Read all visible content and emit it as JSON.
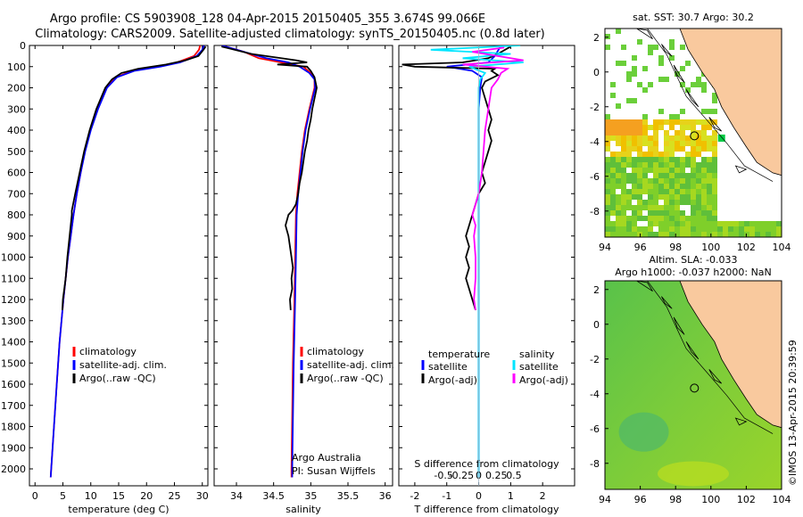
{
  "header": {
    "line1": "Argo profile: CS 5903908_128 04-Apr-2015 20150405_355 3.674S 99.066E",
    "line2": "Climatology: CARS2009. Satellite-adjusted climatology: synTS_20150405.nc (0.8d later)"
  },
  "colors": {
    "clim": "#ff0000",
    "sat": "#0000ff",
    "argo": "#000000",
    "sat_cyan": "#00e5ff",
    "argo_mag": "#ff00ff",
    "land": "#f9c99e"
  },
  "chart_data": [
    {
      "type": "line",
      "name": "temperature-profile",
      "xlabel": "temperature (deg C)",
      "ylabel": "",
      "xlim": [
        -1,
        31
      ],
      "ylim": [
        2080,
        0
      ],
      "xticks": [
        0,
        5,
        10,
        15,
        20,
        25,
        30
      ],
      "yticks": [
        0,
        100,
        200,
        300,
        400,
        500,
        600,
        700,
        800,
        900,
        1000,
        1100,
        1200,
        1300,
        1400,
        1500,
        1600,
        1700,
        1800,
        1900,
        2000
      ],
      "legend": [
        "climatology",
        "satellite-adj. clim.",
        "Argo(..raw -QC)"
      ],
      "series": [
        {
          "name": "climatology",
          "color": "#ff0000",
          "depth": [
            0,
            20,
            50,
            80,
            100,
            120,
            150,
            200,
            300,
            400,
            500,
            600,
            700,
            800,
            900,
            1000,
            1200,
            1400,
            1600,
            1800,
            2000,
            2040
          ],
          "values": [
            29.6,
            29.4,
            28.5,
            25.5,
            22,
            17.5,
            14.5,
            12.8,
            11.2,
            9.9,
            8.9,
            8.2,
            7.5,
            6.9,
            6.4,
            5.9,
            5.1,
            4.4,
            3.9,
            3.4,
            2.9,
            2.8
          ]
        },
        {
          "name": "satellite-adj. clim.",
          "color": "#0000ff",
          "depth": [
            0,
            20,
            50,
            80,
            100,
            120,
            150,
            200,
            300,
            400,
            500,
            600,
            700,
            800,
            900,
            1000,
            1200,
            1400,
            1600,
            1800,
            2000,
            2040
          ],
          "values": [
            30.3,
            30.0,
            29.0,
            26,
            22.5,
            17.8,
            14.7,
            12.9,
            11.3,
            10.0,
            9.0,
            8.2,
            7.5,
            6.9,
            6.4,
            5.9,
            5.1,
            4.4,
            3.9,
            3.4,
            2.9,
            2.8
          ]
        },
        {
          "name": "Argo(..raw -QC)",
          "color": "#000000",
          "depth": [
            5,
            20,
            50,
            70,
            90,
            110,
            130,
            160,
            200,
            300,
            400,
            500,
            600,
            700,
            780,
            800,
            900,
            1000,
            1100,
            1200,
            1250
          ],
          "values": [
            30.6,
            30.2,
            29.3,
            27,
            23.5,
            18.5,
            15.5,
            13.8,
            12.6,
            11.0,
            9.8,
            8.8,
            8.0,
            7.2,
            6.6,
            6.6,
            6.2,
            5.8,
            5.5,
            5.0,
            4.9
          ]
        }
      ]
    },
    {
      "type": "line",
      "name": "salinity-profile",
      "xlabel": "salinity",
      "ylabel": "",
      "xlim": [
        33.7,
        36.1
      ],
      "ylim": [
        2080,
        0
      ],
      "xticks": [
        34,
        34.5,
        35,
        35.5,
        36
      ],
      "legend": [
        "climatology",
        "satellite-adj. clim.",
        "Argo(..raw -QC)"
      ],
      "annotation": [
        "Argo Australia",
        "PI: Susan Wijffels"
      ],
      "series": [
        {
          "name": "climatology",
          "color": "#ff0000",
          "depth": [
            0,
            30,
            60,
            80,
            100,
            130,
            160,
            200,
            300,
            400,
            500,
            600,
            700,
            800,
            1000,
            1200,
            1500,
            2000,
            2040
          ],
          "values": [
            33.8,
            34.1,
            34.3,
            34.6,
            34.9,
            35.0,
            35.05,
            35.05,
            34.98,
            34.92,
            34.88,
            34.85,
            34.82,
            34.8,
            34.79,
            34.78,
            34.76,
            34.74,
            34.74
          ]
        },
        {
          "name": "satellite-adj. clim.",
          "color": "#0000ff",
          "depth": [
            0,
            30,
            60,
            80,
            100,
            130,
            160,
            200,
            300,
            400,
            500,
            600,
            700,
            800,
            1000,
            1200,
            1500,
            2000,
            2040
          ],
          "values": [
            33.8,
            34.1,
            34.4,
            34.7,
            34.85,
            34.98,
            35.05,
            35.06,
            34.99,
            34.93,
            34.89,
            34.86,
            34.83,
            34.81,
            34.8,
            34.79,
            34.77,
            34.75,
            34.75
          ]
        },
        {
          "name": "Argo(..raw -QC)",
          "color": "#000000",
          "depth": [
            5,
            40,
            70,
            80,
            90,
            100,
            120,
            150,
            200,
            250,
            300,
            350,
            400,
            450,
            500,
            550,
            600,
            650,
            700,
            750,
            780,
            800,
            850,
            900,
            950,
            1000,
            1050,
            1100,
            1150,
            1200,
            1250
          ],
          "values": [
            33.8,
            34.2,
            34.8,
            34.95,
            34.55,
            34.95,
            35.0,
            35.05,
            35.08,
            35.05,
            35.02,
            35.0,
            34.97,
            34.95,
            34.92,
            34.9,
            34.88,
            34.85,
            34.83,
            34.8,
            34.75,
            34.7,
            34.66,
            34.7,
            34.72,
            34.74,
            34.76,
            34.74,
            34.75,
            34.72,
            34.73
          ]
        }
      ]
    },
    {
      "type": "line",
      "name": "difference-profile",
      "xlabel": "T difference from climatology",
      "xlabel2": "S difference from climatology",
      "xlim": [
        -2.5,
        3
      ],
      "ylim": [
        2080,
        0
      ],
      "xticks": [
        -2,
        -1,
        0,
        1,
        2
      ],
      "xticks2_labels": [
        "-0.5",
        "-0.25",
        "0",
        "0.25",
        "0.5"
      ],
      "legend_temperature": {
        "title": "temperature",
        "items": [
          "satellite",
          "Argo(-adj)"
        ]
      },
      "legend_salinity": {
        "title": "salinity",
        "items": [
          "satellite",
          "Argo(-adj)"
        ]
      },
      "series": [
        {
          "name": "T satellite",
          "color": "#0000ff",
          "depth": [
            0,
            50,
            80,
            100,
            120,
            150,
            200,
            300,
            500,
            800,
            1200,
            1600,
            2000,
            2040
          ],
          "values": [
            0.7,
            0.5,
            0.3,
            -1.0,
            -0.2,
            0.1,
            0.05,
            0.0,
            0.0,
            0.0,
            0.0,
            0.0,
            0.0,
            0.0
          ]
        },
        {
          "name": "T Argo(-adj)",
          "color": "#000000",
          "depth": [
            5,
            40,
            60,
            80,
            90,
            100,
            110,
            120,
            140,
            170,
            200,
            250,
            300,
            350,
            400,
            450,
            500,
            550,
            600,
            650,
            700,
            750,
            800,
            850,
            900,
            950,
            1000,
            1050,
            1100,
            1150,
            1200,
            1250
          ],
          "values": [
            1.0,
            0.6,
            0.3,
            -0.5,
            -2.4,
            -2.0,
            0.5,
            0.4,
            0.6,
            0.2,
            0.1,
            0.2,
            0.3,
            0.4,
            0.3,
            0.4,
            0.3,
            0.2,
            0.1,
            0.2,
            0.0,
            -0.1,
            -0.2,
            -0.3,
            -0.4,
            -0.3,
            -0.4,
            -0.3,
            -0.4,
            -0.3,
            -0.2,
            -0.1
          ]
        },
        {
          "name": "S satellite",
          "color": "#00e5ff",
          "depth": [
            0,
            20,
            40,
            60,
            80,
            100,
            130,
            160,
            200,
            300,
            500,
            800,
            1200,
            1600,
            2000,
            2040
          ],
          "values": [
            1.3,
            -1.5,
            1.0,
            -0.5,
            1.4,
            -0.3,
            0.2,
            0.05,
            0.0,
            0.0,
            0.0,
            0.0,
            0.0,
            0.0,
            0.0,
            0.0
          ]
        },
        {
          "name": "S Argo(-adj)",
          "color": "#ff00ff",
          "depth": [
            10,
            30,
            50,
            70,
            90,
            110,
            130,
            160,
            200,
            300,
            400,
            500,
            600,
            700,
            750,
            800,
            850,
            900,
            1000,
            1100,
            1200,
            1250
          ],
          "values": [
            0.8,
            -0.2,
            0.6,
            1.4,
            -0.5,
            0.9,
            0.7,
            0.6,
            0.4,
            0.3,
            0.2,
            0.15,
            0.1,
            0.0,
            -0.1,
            -0.2,
            -0.1,
            -0.15,
            -0.1,
            -0.1,
            -0.15,
            -0.1
          ]
        }
      ]
    },
    {
      "type": "heatmap",
      "name": "sst-map",
      "title": "sat. SST: 30.7 Argo: 30.2",
      "xlim": [
        94,
        104
      ],
      "ylim": [
        -9.5,
        2.5
      ],
      "xticks": [
        94,
        96,
        98,
        100,
        102,
        104
      ],
      "yticks": [
        2,
        0,
        -2,
        -4,
        -6,
        -8
      ],
      "profile_lon": 99.066,
      "profile_lat": -3.674
    },
    {
      "type": "heatmap",
      "name": "sla-map",
      "title": "Altim. SLA: -0.033",
      "subtitle": "Argo h1000: -0.037 h2000: NaN",
      "xlim": [
        94,
        104
      ],
      "ylim": [
        -9.5,
        2.5
      ],
      "xticks": [
        94,
        96,
        98,
        100,
        102,
        104
      ],
      "yticks": [
        2,
        0,
        -2,
        -4,
        -6,
        -8
      ],
      "profile_lon": 99.066,
      "profile_lat": -3.674
    }
  ],
  "footer_stamp": "©IMOS 13-Apr-2015 20:39:59"
}
